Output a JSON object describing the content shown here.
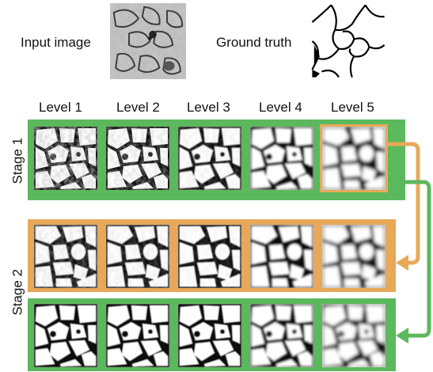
{
  "top": {
    "input_label": "Input image",
    "truth_label": "Ground truth"
  },
  "levels": [
    "Level 1",
    "Level 2",
    "Level 3",
    "Level 4",
    "Level 5"
  ],
  "stages": [
    "Stage 1",
    "Stage 2"
  ],
  "colors": {
    "green": "#5cb85c",
    "orange": "#e8a85a"
  }
}
